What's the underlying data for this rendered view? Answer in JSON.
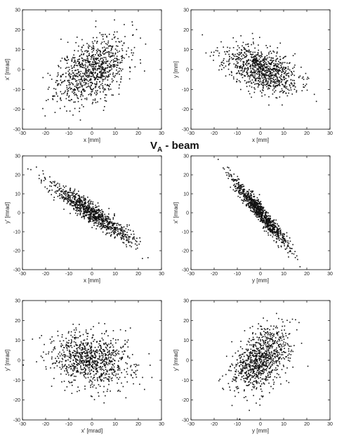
{
  "figure": {
    "title_main": "V",
    "title_subscript": "A",
    "title_rest": " - beam",
    "colors": {
      "points": "#111111",
      "axes": "#000000",
      "background": "#ffffff"
    }
  },
  "chart_data": [
    {
      "type": "scatter",
      "xlabel": "x [mm]",
      "ylabel": "x' [mrad]",
      "xlim": [
        -30,
        30
      ],
      "ylim": [
        -30,
        30
      ],
      "xticks": [
        -30,
        -20,
        -10,
        0,
        10,
        20,
        30
      ],
      "yticks": [
        -30,
        -20,
        -10,
        0,
        10,
        20,
        30
      ],
      "grid": false,
      "distribution": {
        "n": 900,
        "sx": 7.5,
        "sy": 8.5,
        "rho": 0.45,
        "mx": 0,
        "my": 0,
        "seed": 11
      }
    },
    {
      "type": "scatter",
      "xlabel": "x [mm]",
      "ylabel": "y [mm]",
      "xlim": [
        -30,
        30
      ],
      "ylim": [
        -30,
        30
      ],
      "xticks": [
        -30,
        -20,
        -10,
        0,
        10,
        20,
        30
      ],
      "yticks": [
        -30,
        -20,
        -10,
        0,
        10,
        20,
        30
      ],
      "grid": false,
      "distribution": {
        "n": 900,
        "sx": 8.0,
        "sy": 6.0,
        "rho": -0.5,
        "mx": 0,
        "my": 0,
        "seed": 23
      }
    },
    {
      "type": "scatter",
      "xlabel": "x [mm]",
      "ylabel": "y' [mrad]",
      "xlim": [
        -30,
        30
      ],
      "ylim": [
        -30,
        30
      ],
      "xticks": [
        -30,
        -20,
        -10,
        0,
        10,
        20,
        30
      ],
      "yticks": [
        -30,
        -20,
        -10,
        0,
        10,
        20,
        30
      ],
      "grid": false,
      "distribution": {
        "n": 900,
        "sx": 8.5,
        "sy": 7.5,
        "rho": -0.93,
        "mx": 0,
        "my": 0,
        "seed": 37
      }
    },
    {
      "type": "scatter",
      "xlabel": "y [mm]",
      "ylabel": "x' [mrad]",
      "xlim": [
        -30,
        30
      ],
      "ylim": [
        -30,
        30
      ],
      "xticks": [
        -30,
        -20,
        -10,
        0,
        10,
        20,
        30
      ],
      "yticks": [
        -30,
        -20,
        -10,
        0,
        10,
        20,
        30
      ],
      "grid": false,
      "distribution": {
        "n": 900,
        "sx": 6.0,
        "sy": 9.0,
        "rho": -0.96,
        "mx": 0,
        "my": 0,
        "seed": 41
      }
    },
    {
      "type": "scatter",
      "xlabel": "x' [mrad]",
      "ylabel": "y' [mrad]",
      "xlim": [
        -30,
        30
      ],
      "ylim": [
        -30,
        30
      ],
      "xticks": [
        -30,
        -20,
        -10,
        0,
        10,
        20,
        30
      ],
      "yticks": [
        -30,
        -20,
        -10,
        0,
        10,
        20,
        30
      ],
      "grid": false,
      "distribution": {
        "n": 900,
        "sx": 9.0,
        "sy": 7.0,
        "rho": -0.15,
        "mx": 0,
        "my": 0,
        "seed": 53
      }
    },
    {
      "type": "scatter",
      "xlabel": "y [mm]",
      "ylabel": "y' [mrad]",
      "xlim": [
        -30,
        30
      ],
      "ylim": [
        -30,
        30
      ],
      "xticks": [
        -30,
        -20,
        -10,
        0,
        10,
        20,
        30
      ],
      "yticks": [
        -30,
        -20,
        -10,
        0,
        10,
        20,
        30
      ],
      "grid": false,
      "distribution": {
        "n": 900,
        "sx": 6.0,
        "sy": 8.0,
        "rho": 0.45,
        "mx": 0,
        "my": 0,
        "seed": 67
      }
    }
  ]
}
